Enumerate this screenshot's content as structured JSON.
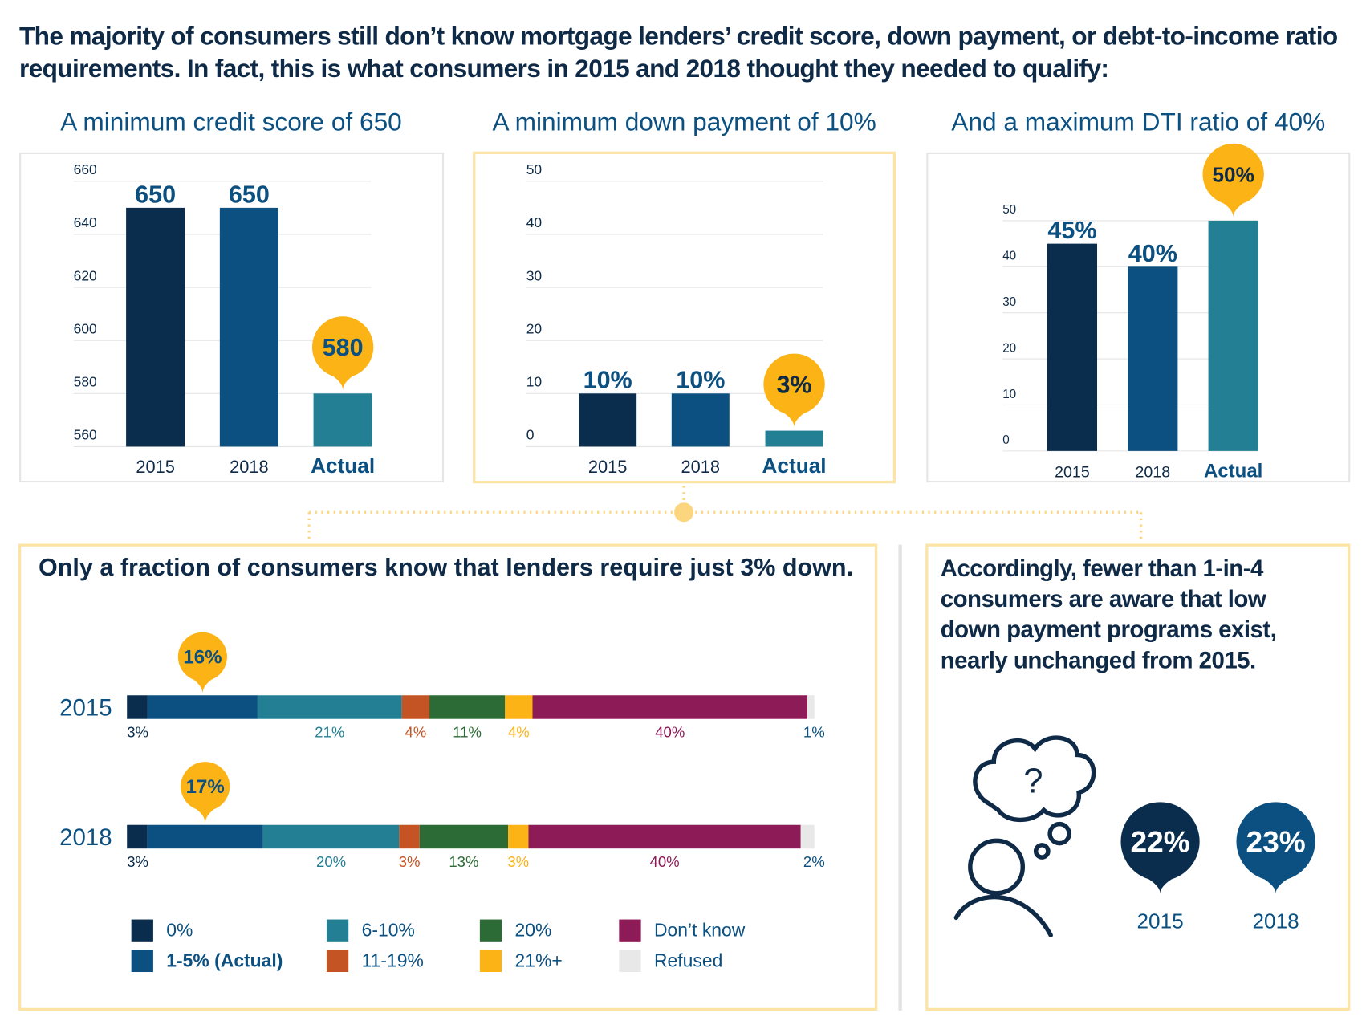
{
  "title": "The majority of consumers still don’t know mortgage lenders’ credit score, down payment, or debt-to-income ratio requirements. In fact, this is what consumers in 2015 and 2018 thought they needed to qualify:",
  "colors": {
    "navy": "#0a2d4d",
    "blue": "#0b5080",
    "teal": "#227f94",
    "orange": "#c55425",
    "green": "#2d6b36",
    "yellow": "#fbb316",
    "maroon": "#8c1b57",
    "gray": "#e8e8e8"
  },
  "chart_data": [
    {
      "type": "bar",
      "title": "A minimum credit score of 650",
      "categories": [
        "2015",
        "2018",
        "Actual"
      ],
      "values": [
        650,
        650,
        580
      ],
      "data_labels": [
        "650",
        "650",
        "580"
      ],
      "ylim": [
        560,
        660
      ],
      "yticks": [
        660,
        640,
        620,
        600,
        580,
        560
      ],
      "grid": true,
      "highlight": "Actual"
    },
    {
      "type": "bar",
      "title": "A minimum down payment of 10%",
      "categories": [
        "2015",
        "2018",
        "Actual"
      ],
      "values": [
        10,
        10,
        3
      ],
      "data_labels": [
        "10%",
        "10%",
        "3%"
      ],
      "ylim": [
        0,
        50
      ],
      "yticks": [
        50,
        40,
        30,
        20,
        10,
        0
      ],
      "grid": true,
      "highlight": "Actual"
    },
    {
      "type": "bar",
      "title": "And a maximum DTI ratio of 40%",
      "categories": [
        "2015",
        "2018",
        "Actual"
      ],
      "values": [
        45,
        40,
        50
      ],
      "data_labels": [
        "45%",
        "40%",
        "50%"
      ],
      "ylim": [
        0,
        50
      ],
      "yticks": [
        50,
        40,
        30,
        20,
        10,
        0
      ],
      "grid": true,
      "highlight": "Actual"
    },
    {
      "type": "bar",
      "stacked": true,
      "orientation": "horizontal",
      "title": "Only a fraction of consumers know that lenders require just 3% down.",
      "categories": [
        "2015",
        "2018"
      ],
      "series": [
        {
          "name": "0%",
          "values": [
            3,
            3
          ],
          "color": "#0a2d4d"
        },
        {
          "name": "1-5% (Actual)",
          "values": [
            16,
            17
          ],
          "color": "#0b5080"
        },
        {
          "name": "6-10%",
          "values": [
            21,
            20
          ],
          "color": "#227f94"
        },
        {
          "name": "11-19%",
          "values": [
            4,
            3
          ],
          "color": "#c55425"
        },
        {
          "name": "20%",
          "values": [
            11,
            13
          ],
          "color": "#2d6b36"
        },
        {
          "name": "21%+",
          "values": [
            4,
            3
          ],
          "color": "#fbb316"
        },
        {
          "name": "Don’t know",
          "values": [
            40,
            40
          ],
          "color": "#8c1b57"
        },
        {
          "name": "Refused",
          "values": [
            1,
            2
          ],
          "color": "#e8e8e8"
        }
      ],
      "legend": "bottom"
    }
  ],
  "awareness": {
    "title": "Accordingly, fewer than 1-in-4 consumers are aware that low down payment programs exist, nearly unchanged from 2015.",
    "icon": "person-thinking-question-icon",
    "items": [
      {
        "year": "2015",
        "value": "22%",
        "color": "#0a2d4d"
      },
      {
        "year": "2018",
        "value": "23%",
        "color": "#0b5080"
      }
    ]
  }
}
